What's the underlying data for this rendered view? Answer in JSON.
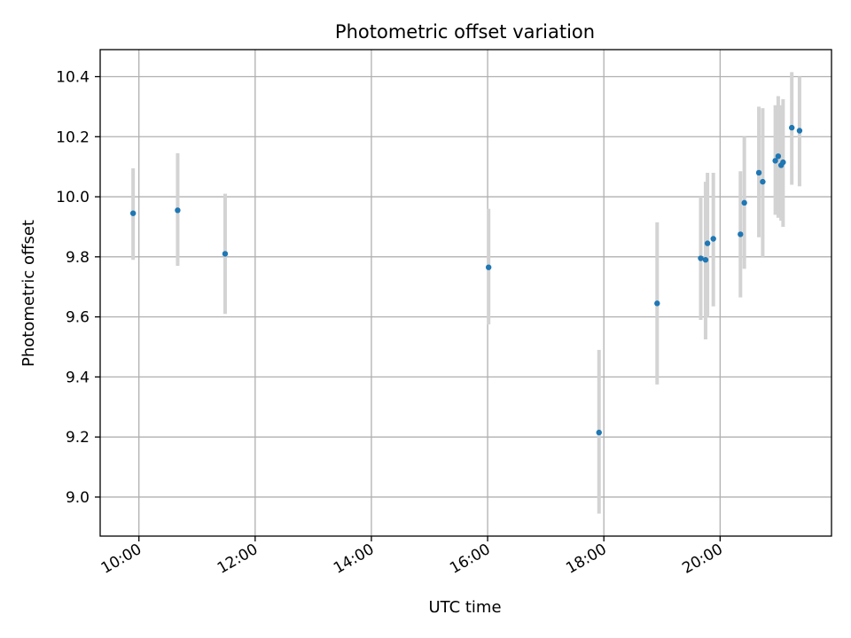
{
  "chart_data": {
    "type": "scatter",
    "title": "Photometric offset variation",
    "xlabel": "UTC time",
    "ylabel": "Photometric offset",
    "x_unit": "UTC hours (time of day)",
    "xlim": [
      "09:20",
      "21:55"
    ],
    "ylim": [
      8.87,
      10.49
    ],
    "xticks": [
      "10:00",
      "12:00",
      "14:00",
      "16:00",
      "18:00",
      "20:00"
    ],
    "yticks": [
      "9.0",
      "9.2",
      "9.4",
      "9.6",
      "9.8",
      "10.0",
      "10.2",
      "10.4"
    ],
    "grid": true,
    "legend": "none",
    "colors": {
      "marker": "#1f77b4",
      "errorbar": "#d3d3d3",
      "grid": "#b0b0b0",
      "axes": "#000000"
    },
    "series": [
      {
        "points": [
          {
            "x": "09:54",
            "y": 9.945,
            "err_low": 9.79,
            "err_high": 10.095
          },
          {
            "x": "10:40",
            "y": 9.955,
            "err_low": 9.77,
            "err_high": 10.145
          },
          {
            "x": "11:29",
            "y": 9.81,
            "err_low": 9.61,
            "err_high": 10.01
          },
          {
            "x": "16:01",
            "y": 9.765,
            "err_low": 9.575,
            "err_high": 9.96
          },
          {
            "x": "17:55",
            "y": 9.215,
            "err_low": 8.945,
            "err_high": 9.49
          },
          {
            "x": "18:55",
            "y": 9.645,
            "err_low": 9.375,
            "err_high": 9.915
          },
          {
            "x": "19:40",
            "y": 9.795,
            "err_low": 9.59,
            "err_high": 10.0
          },
          {
            "x": "19:45",
            "y": 9.79,
            "err_low": 9.525,
            "err_high": 10.05
          },
          {
            "x": "19:47",
            "y": 9.845,
            "err_low": 9.6,
            "err_high": 10.08
          },
          {
            "x": "19:53",
            "y": 9.86,
            "err_low": 9.635,
            "err_high": 10.08
          },
          {
            "x": "20:21",
            "y": 9.875,
            "err_low": 9.665,
            "err_high": 10.085
          },
          {
            "x": "20:25",
            "y": 9.98,
            "err_low": 9.76,
            "err_high": 10.2
          },
          {
            "x": "20:40",
            "y": 10.08,
            "err_low": 9.865,
            "err_high": 10.3
          },
          {
            "x": "20:44",
            "y": 10.05,
            "err_low": 9.8,
            "err_high": 10.295
          },
          {
            "x": "20:57",
            "y": 10.12,
            "err_low": 9.94,
            "err_high": 10.305
          },
          {
            "x": "21:00",
            "y": 10.135,
            "err_low": 9.93,
            "err_high": 10.335
          },
          {
            "x": "21:03",
            "y": 10.105,
            "err_low": 9.92,
            "err_high": 10.305
          },
          {
            "x": "21:05",
            "y": 10.115,
            "err_low": 9.9,
            "err_high": 10.325
          },
          {
            "x": "21:14",
            "y": 10.23,
            "err_low": 10.04,
            "err_high": 10.415
          },
          {
            "x": "21:22",
            "y": 10.22,
            "err_low": 10.035,
            "err_high": 10.4
          }
        ]
      }
    ]
  }
}
